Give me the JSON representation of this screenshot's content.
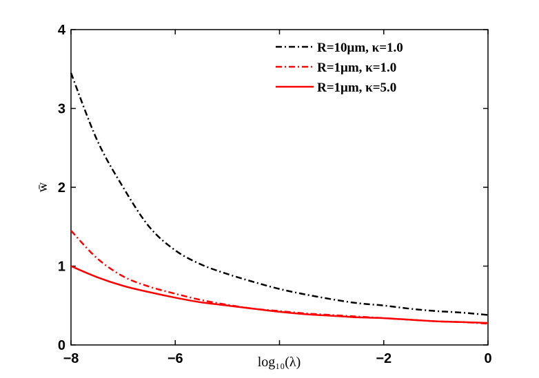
{
  "chart_data": {
    "type": "line",
    "xlabel": "log₁₀(λ)",
    "ylabel": "w̄",
    "xlim": [
      -8,
      0
    ],
    "ylim": [
      0,
      4
    ],
    "x_ticks": [
      "−8",
      "−6",
      "−4",
      "−2",
      "0"
    ],
    "x_tick_values": [
      -8,
      -6,
      -4,
      -2,
      0
    ],
    "y_ticks": [
      "0",
      "1",
      "2",
      "3",
      "4"
    ],
    "y_tick_values": [
      0,
      1,
      2,
      3,
      4
    ],
    "grid": false,
    "legend_position": "top-right",
    "series": [
      {
        "name": "R=10μm, κ=1.0",
        "color": "#000000",
        "dash": "dash-dot",
        "x": [
          -8,
          -7.5,
          -7,
          -6.5,
          -6,
          -5.5,
          -5,
          -4.5,
          -4,
          -3.5,
          -3,
          -2.5,
          -2,
          -1.5,
          -1,
          -0.5,
          0
        ],
        "y": [
          3.45,
          2.6,
          2.0,
          1.5,
          1.2,
          1.02,
          0.9,
          0.8,
          0.71,
          0.64,
          0.58,
          0.53,
          0.5,
          0.46,
          0.43,
          0.41,
          0.38
        ]
      },
      {
        "name": "R=1μm, κ=1.0",
        "color": "#ff0000",
        "dash": "dash-dot",
        "x": [
          -8,
          -7.5,
          -7,
          -6.5,
          -6,
          -5.5,
          -5,
          -4.5,
          -4,
          -3.5,
          -3,
          -2.5,
          -2,
          -1.5,
          -1,
          -0.5,
          0
        ],
        "y": [
          1.45,
          1.1,
          0.87,
          0.74,
          0.65,
          0.57,
          0.51,
          0.46,
          0.43,
          0.4,
          0.38,
          0.36,
          0.34,
          0.32,
          0.3,
          0.29,
          0.27
        ]
      },
      {
        "name": "R=1μm, κ=5.0",
        "color": "#ff0000",
        "dash": "solid",
        "x": [
          -8,
          -7.5,
          -7,
          -6.5,
          -6,
          -5.5,
          -5,
          -4.5,
          -4,
          -3.5,
          -3,
          -2.5,
          -2,
          -1.5,
          -1,
          -0.5,
          0
        ],
        "y": [
          1.0,
          0.86,
          0.75,
          0.67,
          0.6,
          0.54,
          0.5,
          0.46,
          0.42,
          0.39,
          0.37,
          0.35,
          0.34,
          0.32,
          0.3,
          0.29,
          0.28
        ]
      }
    ]
  }
}
